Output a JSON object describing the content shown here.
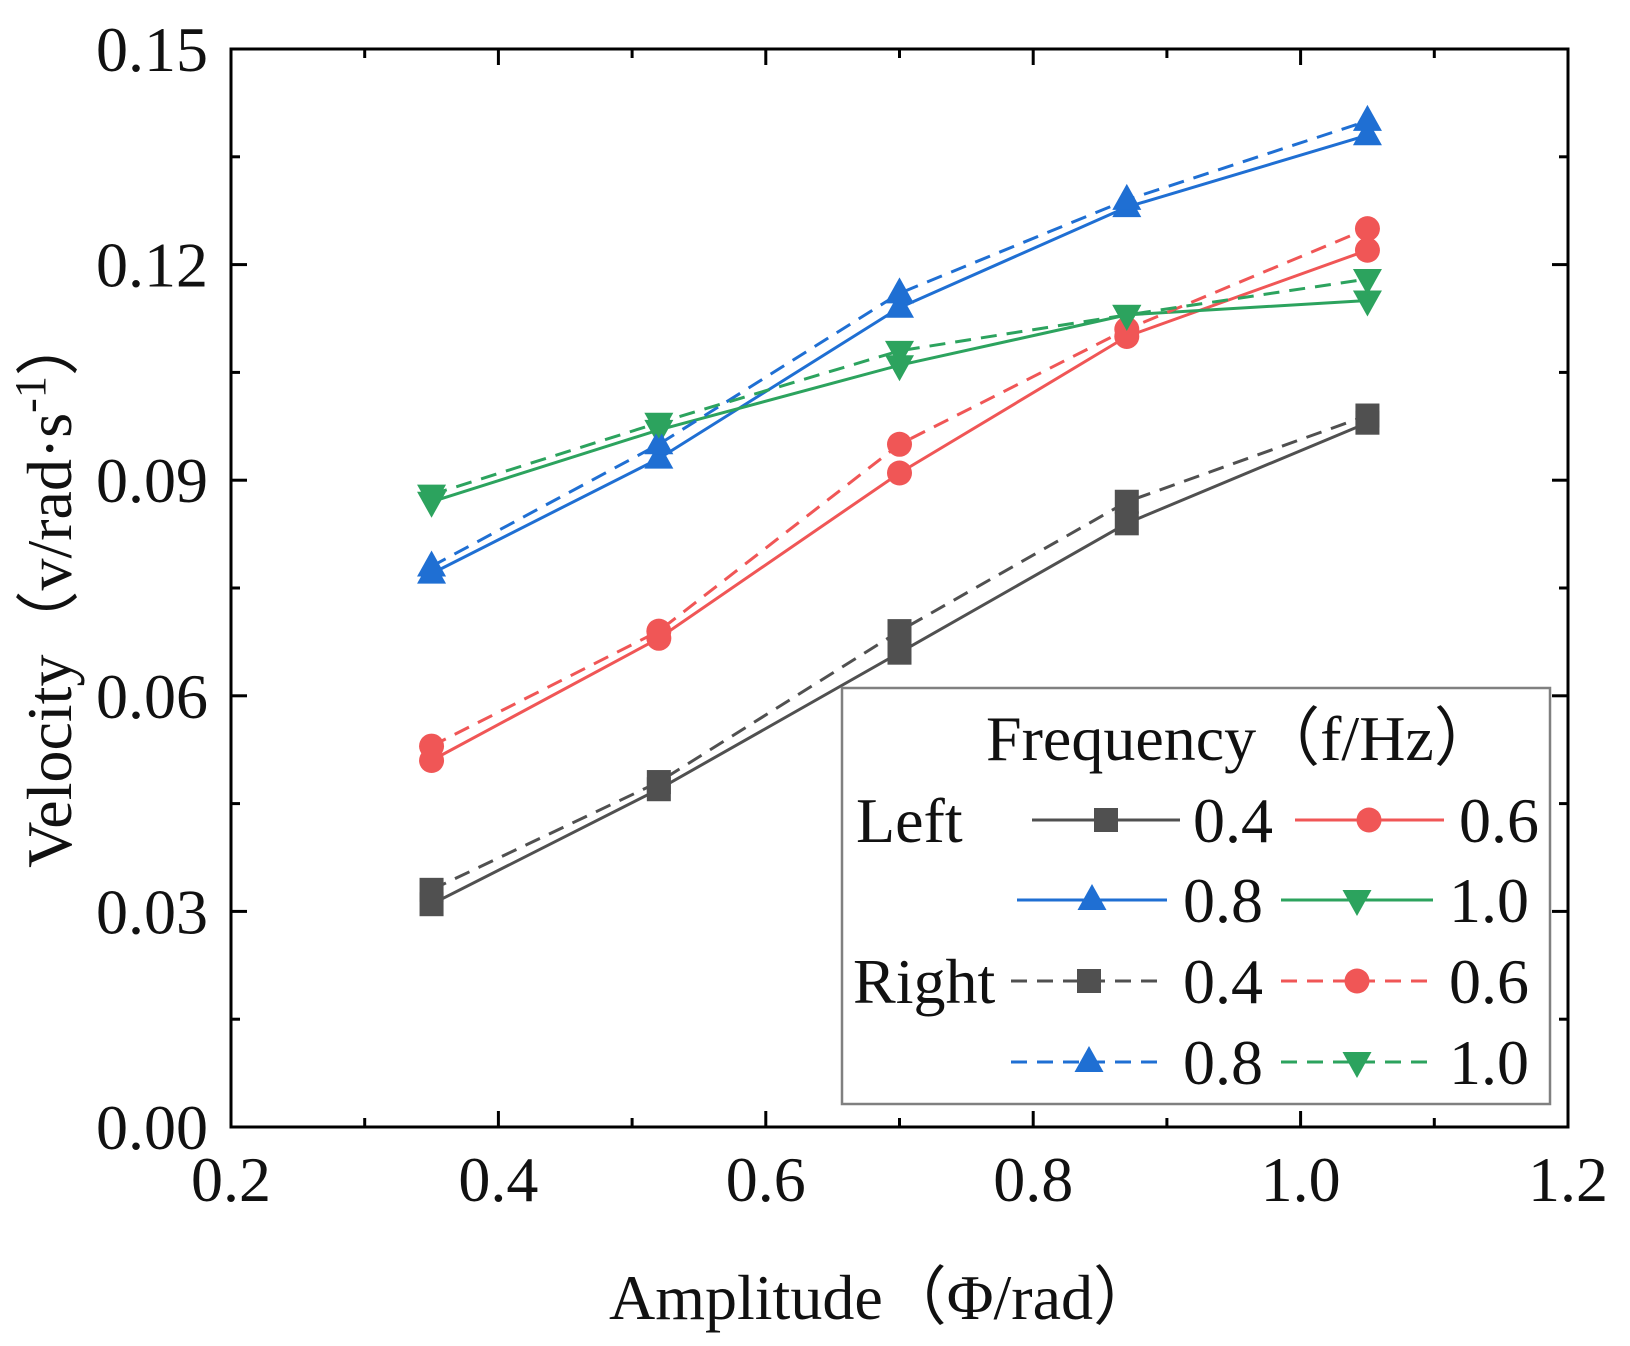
{
  "chart_data": {
    "type": "line",
    "xlabel": "Amplitude（Φ/rad）",
    "ylabel": {
      "text": "Velocity（v/rad·s",
      "superscript": "-1",
      "suffix": "）"
    },
    "xlim": [
      0.2,
      1.2
    ],
    "ylim": [
      0,
      0.15
    ],
    "grid": false,
    "x_ticks": {
      "values": [
        0.2,
        0.4,
        0.6,
        0.8,
        1.0,
        1.2
      ],
      "labels": [
        "0.2",
        "0.4",
        "0.6",
        "0.8",
        "1.0",
        "1.2"
      ]
    },
    "y_ticks": {
      "values": [
        0,
        0.03,
        0.06,
        0.09,
        0.12,
        0.15
      ],
      "labels": [
        "0.00",
        "0.03",
        "0.06",
        "0.09",
        "0.12",
        "0.15"
      ]
    },
    "x": [
      0.35,
      0.52,
      0.7,
      0.87,
      1.05
    ],
    "legend": {
      "title": "Frequency（f/Hz）",
      "groups": [
        "Left",
        "Right"
      ],
      "position": "bottom-right"
    },
    "series": [
      {
        "name": "0.4",
        "group": 0,
        "marker": "square",
        "line_style": "solid",
        "color": "#505050",
        "values": [
          0.031,
          0.047,
          0.066,
          0.084,
          0.098
        ]
      },
      {
        "name": "0.6",
        "group": 0,
        "marker": "circle",
        "line_style": "solid",
        "color": "#f05656",
        "values": [
          0.051,
          0.068,
          0.091,
          0.11,
          0.122
        ]
      },
      {
        "name": "0.8",
        "group": 0,
        "marker": "triangle-up",
        "line_style": "solid",
        "color": "#1f6fd3",
        "values": [
          0.077,
          0.093,
          0.114,
          0.128,
          0.138
        ]
      },
      {
        "name": "1.0",
        "group": 0,
        "marker": "triangle-down",
        "line_style": "solid",
        "color": "#2ca35e",
        "values": [
          0.087,
          0.097,
          0.106,
          0.113,
          0.115
        ]
      },
      {
        "name": "0.4",
        "group": 1,
        "marker": "square",
        "line_style": "dashed",
        "color": "#505050",
        "values": [
          0.033,
          0.048,
          0.069,
          0.087,
          0.099
        ]
      },
      {
        "name": "0.6",
        "group": 1,
        "marker": "circle",
        "line_style": "dashed",
        "color": "#f05656",
        "values": [
          0.053,
          0.069,
          0.095,
          0.111,
          0.125
        ]
      },
      {
        "name": "0.8",
        "group": 1,
        "marker": "triangle-up",
        "line_style": "dashed",
        "color": "#1f6fd3",
        "values": [
          0.078,
          0.095,
          0.116,
          0.129,
          0.14
        ]
      },
      {
        "name": "1.0",
        "group": 1,
        "marker": "triangle-down",
        "line_style": "dashed",
        "color": "#2ca35e",
        "values": [
          0.088,
          0.098,
          0.108,
          0.113,
          0.118
        ]
      }
    ]
  }
}
